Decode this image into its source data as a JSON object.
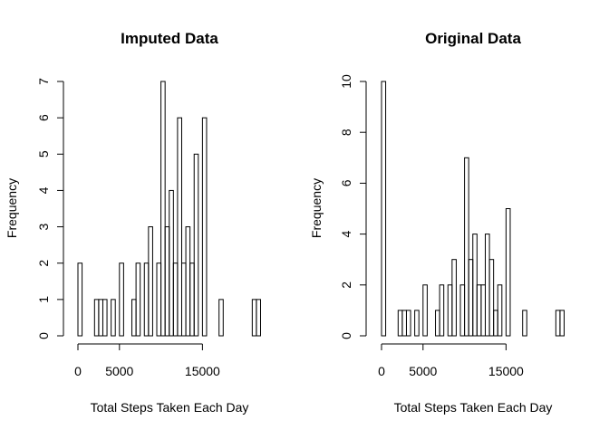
{
  "chart_data": [
    {
      "type": "bar",
      "title": "Imputed Data",
      "xlabel": "Total Steps Taken Each Day",
      "ylabel": "Frequency",
      "bin_width": 500,
      "xlim": [
        0,
        22000
      ],
      "ylim": [
        0,
        7
      ],
      "x_ticks": [
        0,
        5000,
        15000
      ],
      "x_tick_labels": [
        "0",
        "5000",
        "15000"
      ],
      "y_ticks": [
        0,
        1,
        2,
        3,
        4,
        5,
        6,
        7
      ],
      "y_tick_labels": [
        "0",
        "1",
        "2",
        "3",
        "4",
        "5",
        "6",
        "7"
      ],
      "bin_starts": [
        0,
        500,
        1000,
        1500,
        2000,
        2500,
        3000,
        3500,
        4000,
        4500,
        5000,
        5500,
        6000,
        6500,
        7000,
        7500,
        8000,
        8500,
        9000,
        9500,
        10000,
        10500,
        11000,
        11500,
        12000,
        12500,
        13000,
        13500,
        14000,
        14500,
        15000,
        15500,
        16000,
        16500,
        17000,
        17500,
        18000,
        18500,
        19000,
        19500,
        20000,
        20500,
        21000,
        21500
      ],
      "values": [
        2,
        0,
        0,
        0,
        1,
        1,
        1,
        0,
        1,
        0,
        2,
        0,
        0,
        1,
        2,
        0,
        2,
        3,
        0,
        2,
        7,
        3,
        4,
        2,
        6,
        2,
        3,
        2,
        5,
        0,
        6,
        0,
        0,
        0,
        1,
        0,
        0,
        0,
        0,
        0,
        0,
        0,
        1,
        1
      ],
      "grid": false
    },
    {
      "type": "bar",
      "title": "Original Data",
      "xlabel": "Total Steps Taken Each Day",
      "ylabel": "Frequency",
      "bin_width": 500,
      "xlim": [
        0,
        22000
      ],
      "ylim": [
        0,
        10
      ],
      "x_ticks": [
        0,
        5000,
        15000
      ],
      "x_tick_labels": [
        "0",
        "5000",
        "15000"
      ],
      "y_ticks": [
        0,
        2,
        4,
        6,
        8,
        10
      ],
      "y_tick_labels": [
        "0",
        "2",
        "4",
        "6",
        "8",
        "10"
      ],
      "bin_starts": [
        0,
        500,
        1000,
        1500,
        2000,
        2500,
        3000,
        3500,
        4000,
        4500,
        5000,
        5500,
        6000,
        6500,
        7000,
        7500,
        8000,
        8500,
        9000,
        9500,
        10000,
        10500,
        11000,
        11500,
        12000,
        12500,
        13000,
        13500,
        14000,
        14500,
        15000,
        15500,
        16000,
        16500,
        17000,
        17500,
        18000,
        18500,
        19000,
        19500,
        20000,
        20500,
        21000,
        21500
      ],
      "values": [
        10,
        0,
        0,
        0,
        1,
        1,
        1,
        0,
        1,
        0,
        2,
        0,
        0,
        1,
        2,
        0,
        2,
        3,
        0,
        2,
        7,
        3,
        4,
        2,
        2,
        4,
        3,
        1,
        2,
        0,
        5,
        0,
        0,
        0,
        1,
        0,
        0,
        0,
        0,
        0,
        0,
        0,
        1,
        1
      ],
      "grid": false
    }
  ]
}
